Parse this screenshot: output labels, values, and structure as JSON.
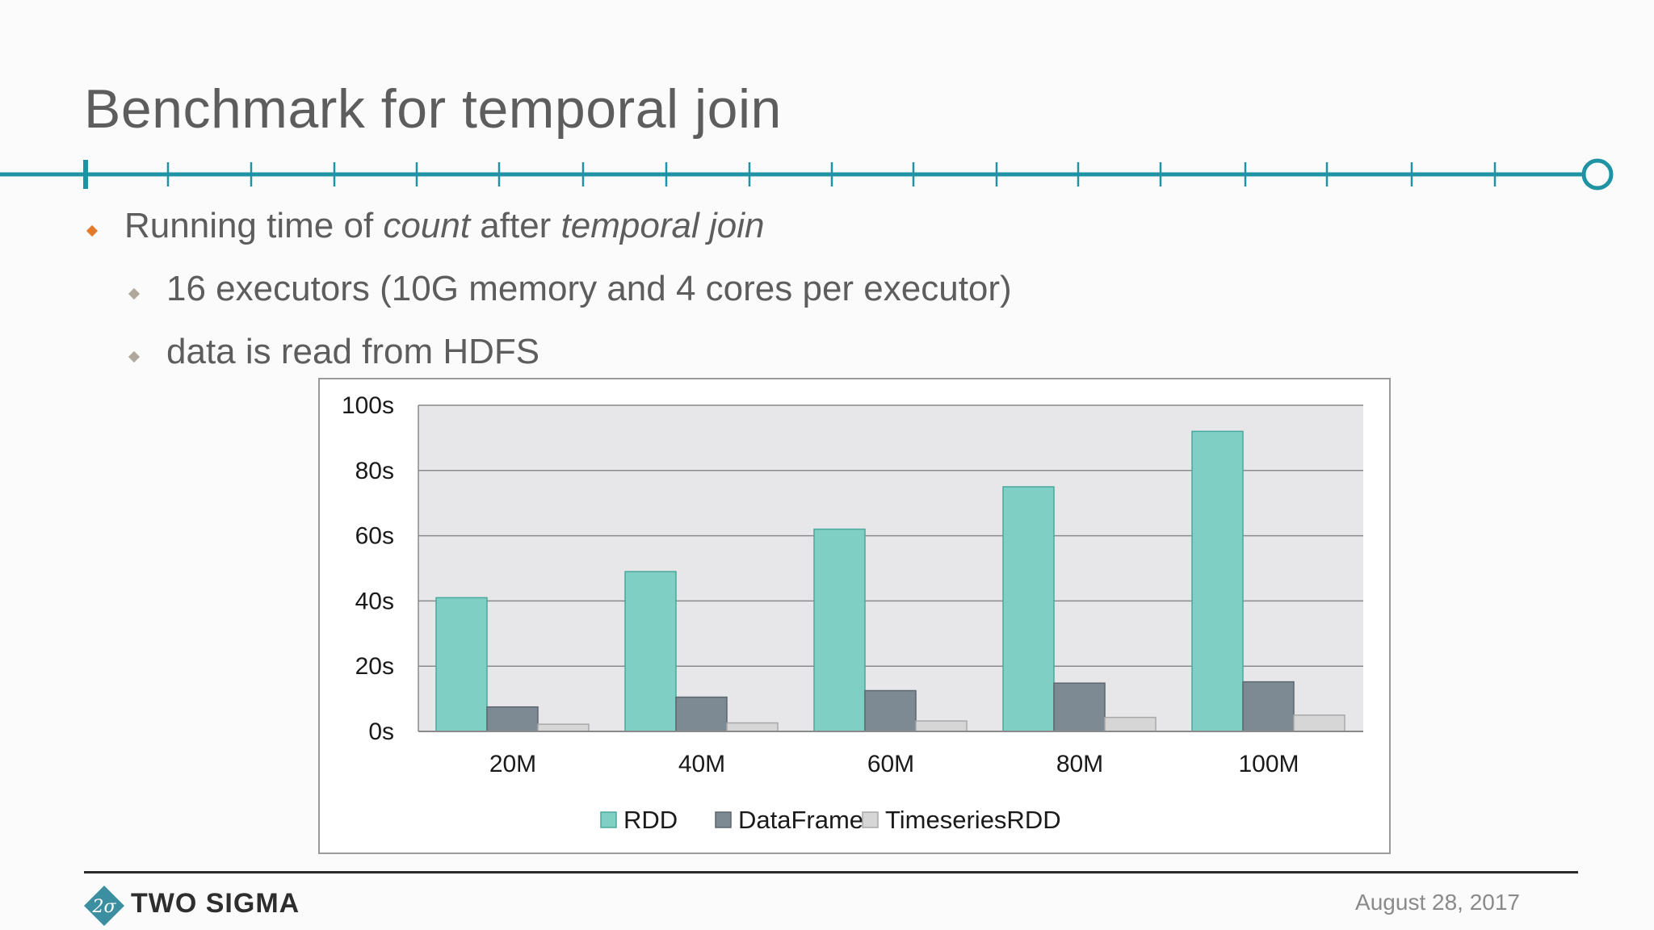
{
  "slide": {
    "title": "Benchmark for temporal join",
    "bullet_main": {
      "prefix": "Running time of ",
      "em1": "count",
      "middle": " after ",
      "em2": "temporal join"
    },
    "sub_bullets": [
      "16 executors (10G memory and 4 cores per executor)",
      "data is read from HDFS"
    ],
    "footer": {
      "brand": "TWO SIGMA",
      "logo_text": "2σ",
      "date": "August 28, 2017"
    }
  },
  "colors": {
    "accent": "#1f93a3",
    "bullet_main": "#e07b2a",
    "bullet_sub": "#b0a89a",
    "rdd": "#7fcfc5",
    "dataframe": "#7e8a93",
    "timeseriesrdd": "#d6d6d6",
    "plot_bg": "#e7e7ea"
  },
  "chart_data": {
    "type": "bar",
    "title": "",
    "xlabel": "",
    "ylabel": "",
    "categories": [
      "20M",
      "40M",
      "60M",
      "80M",
      "100M"
    ],
    "series": [
      {
        "name": "RDD",
        "values": [
          41,
          49,
          62,
          75,
          92
        ]
      },
      {
        "name": "DataFrame",
        "values": [
          7.5,
          10.5,
          12.5,
          14.8,
          15.2
        ]
      },
      {
        "name": "TimeseriesRDD",
        "values": [
          2.2,
          2.6,
          3.2,
          4.3,
          5.0
        ]
      }
    ],
    "ylim": [
      0,
      100
    ],
    "yticks": [
      0,
      20,
      40,
      60,
      80,
      100
    ],
    "ytick_labels": [
      "0s",
      "20s",
      "40s",
      "60s",
      "80s",
      "100s"
    ],
    "grid": true,
    "legend": "bottom"
  }
}
